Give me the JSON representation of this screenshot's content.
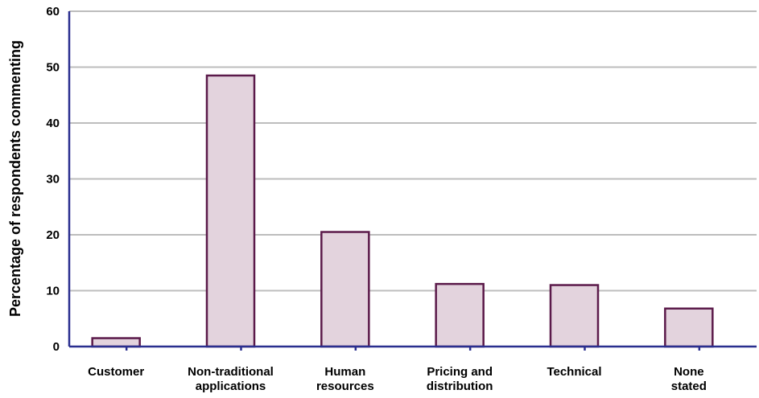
{
  "chart_data": {
    "type": "bar",
    "title": "",
    "xlabel": "",
    "ylabel": "Percentage of respondents commenting",
    "ylim": [
      0,
      60
    ],
    "yticks": [
      0,
      10,
      20,
      30,
      40,
      50,
      60
    ],
    "categories": [
      [
        "Customer"
      ],
      [
        "Non-traditional",
        "applications"
      ],
      [
        "Human",
        "resources"
      ],
      [
        "Pricing and",
        "distribution"
      ],
      [
        "Technical"
      ],
      [
        "None",
        "stated"
      ]
    ],
    "values": [
      1.5,
      48.5,
      20.5,
      11.2,
      11.0,
      6.8
    ],
    "grid": true,
    "colors": {
      "bar_fill": "#e3d3dd",
      "bar_stroke": "#5b1a4a",
      "axis": "#2a2f8f",
      "grid": "#bdbdbd"
    }
  }
}
